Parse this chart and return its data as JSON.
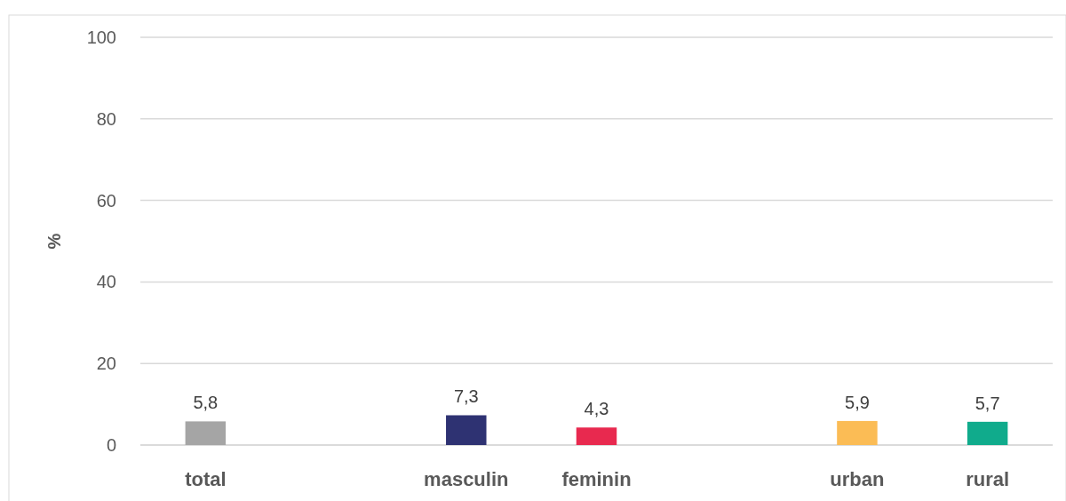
{
  "chart_data": {
    "type": "bar",
    "ylabel": "%",
    "categories": [
      "total",
      null,
      "masculin",
      "feminin",
      null,
      "urban",
      "rural"
    ],
    "values": [
      5.8,
      null,
      7.3,
      4.3,
      null,
      5.9,
      5.7
    ],
    "colors": [
      "#a5a5a5",
      null,
      "#2e3272",
      "#e8294f",
      null,
      "#fbbc55",
      "#10ab8c"
    ],
    "value_labels": [
      "5,8",
      null,
      "7,3",
      "4,3",
      null,
      "5,9",
      "5,7"
    ],
    "ylim": [
      0,
      100
    ],
    "yticks": [
      0,
      20,
      40,
      60,
      80,
      100
    ],
    "grid": "y"
  }
}
